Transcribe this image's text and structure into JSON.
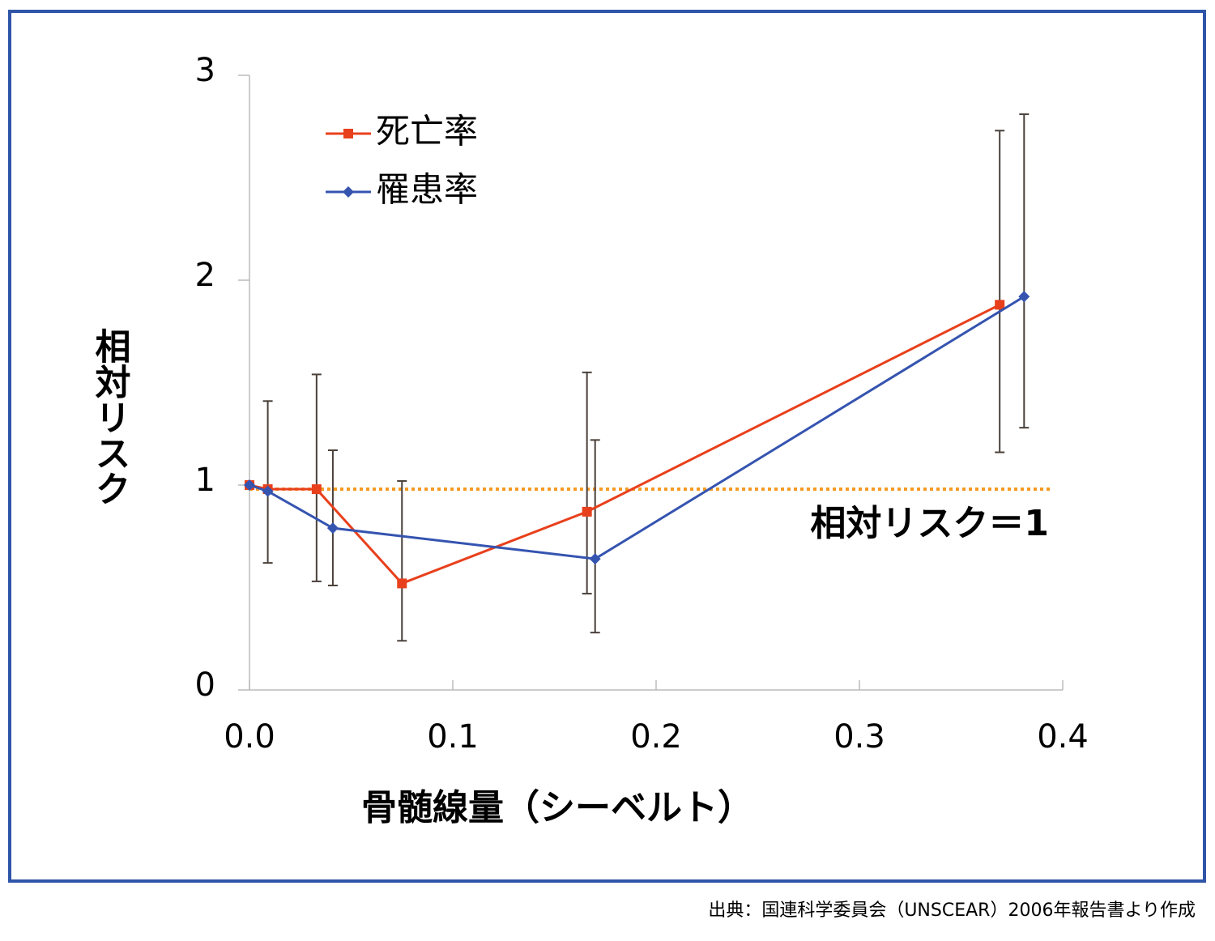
{
  "chart_data": {
    "type": "line",
    "xlabel": "骨髄線量（シーベルト）",
    "ylabel": "相対リスク",
    "xlim": [
      0,
      0.4
    ],
    "xticks": [
      {
        "value": 0,
        "label": "0.0"
      },
      0.1,
      0.2,
      0.3,
      0.4
    ],
    "ylim": [
      0,
      3
    ],
    "yticks": [
      0,
      1,
      2,
      3
    ],
    "series": [
      {
        "name": "死亡率",
        "color": "#e8401c",
        "marker": "square",
        "x": [
          0.0,
          0.009,
          0.033,
          0.075,
          0.166,
          0.369
        ],
        "values": [
          1.0,
          0.98,
          0.98,
          0.52,
          0.87,
          1.88
        ],
        "lower": [
          null,
          0.62,
          0.53,
          0.24,
          0.47,
          1.16
        ],
        "upper": [
          null,
          1.41,
          1.54,
          1.02,
          1.55,
          2.73
        ]
      },
      {
        "name": "罹患率",
        "color": "#3554b0",
        "marker": "diamond",
        "x": [
          0.0,
          0.009,
          0.041,
          0.17,
          0.381
        ],
        "values": [
          1.0,
          0.97,
          0.79,
          0.64,
          1.92
        ],
        "lower": [
          null,
          null,
          0.51,
          0.28,
          1.28
        ],
        "upper": [
          null,
          null,
          1.17,
          1.22,
          2.81
        ]
      }
    ],
    "reference_line": {
      "value": 0.98,
      "label": "相対リスク＝1",
      "color": "#f59a23"
    },
    "legend": "upper left",
    "source": "出典：国連科学委員会（UNSCEAR）2006年報告書より作成"
  }
}
